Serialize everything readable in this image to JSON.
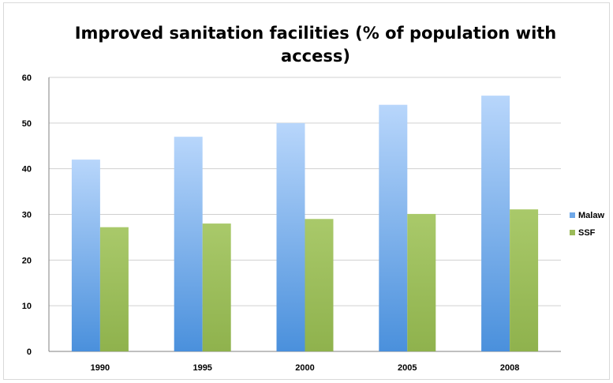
{
  "chart_data": {
    "type": "bar",
    "title_lines": [
      "Improved sanitation facilities (% of population with",
      "access)"
    ],
    "categories": [
      "1990",
      "1995",
      "2000",
      "2005",
      "2008"
    ],
    "series": [
      {
        "name": "Malaw",
        "values": [
          42,
          47,
          50,
          54,
          56
        ],
        "color": "#6fa8e8"
      },
      {
        "name": "SSF",
        "values": [
          27.2,
          28,
          29,
          30.1,
          31.1
        ],
        "color": "#9bbb59"
      }
    ],
    "yticks": [
      0,
      10,
      20,
      30,
      40,
      50,
      60
    ],
    "ylim": [
      0,
      60
    ],
    "xlabel": "",
    "ylabel": "",
    "grid": true,
    "legend_position": "right"
  }
}
